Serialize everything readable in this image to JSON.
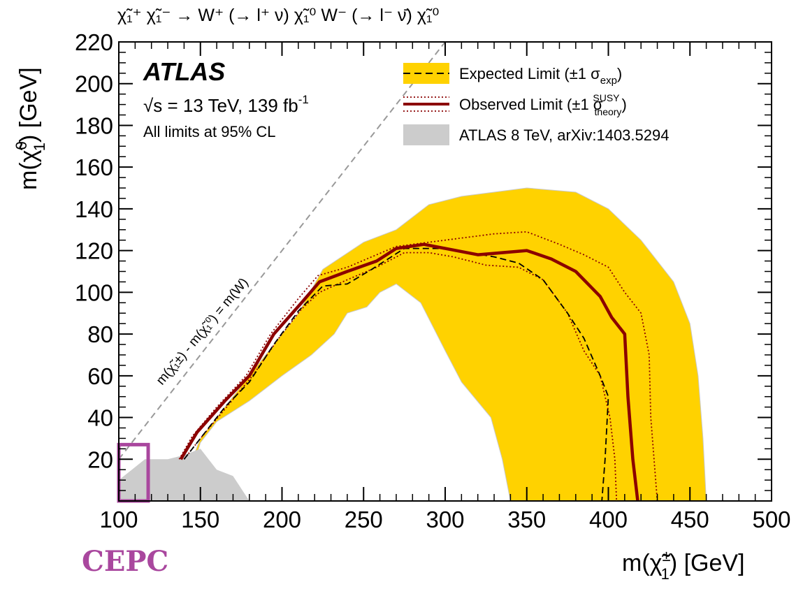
{
  "chart_data": {
    "type": "area",
    "title": "χ̃₁⁺ χ̃₁⁻ → W⁺ (→ l⁺ ν) χ̃₁⁰ W⁻ (→ l⁻ ν̄) χ̃₁⁰",
    "xlabel_main": "m(χ̃",
    "xlabel_sup": "±",
    "xlabel_sub": "1",
    "xlabel_tail": ") [GeV]",
    "ylabel_main": "m(χ̃",
    "ylabel_sup": "0",
    "ylabel_sub": "1",
    "ylabel_tail": ") [GeV]",
    "xlim": [
      100,
      500
    ],
    "ylim": [
      0,
      220
    ],
    "x_ticks": [
      "100",
      "150",
      "200",
      "250",
      "300",
      "350",
      "400",
      "450",
      "500"
    ],
    "y_ticks": [
      "20",
      "40",
      "60",
      "80",
      "100",
      "120",
      "140",
      "160",
      "180",
      "200",
      "220"
    ],
    "grid": false,
    "experiment": "ATLAS",
    "energy_text": "√s = 13 TeV, 139 fb",
    "energy_sup": "-1",
    "cl_text": "All limits at 95% CL",
    "diagonal_label": "m(χ̃₁±) - m(χ̃₁⁰) = m(W)",
    "legend_position": "top-right",
    "legend": [
      {
        "label": "Expected Limit (±1 σ",
        "sub": "exp",
        "tail": ")"
      },
      {
        "label": "Observed Limit (±1 σ",
        "sub": "theory",
        "sup": "SUSY",
        "tail": ")"
      },
      {
        "label": "ATLAS 8 TeV, arXiv:1403.5294"
      }
    ],
    "colors": {
      "band": "#ffd200",
      "band_edge": "#c9c9c9",
      "observed": "#8b0000",
      "expected": "#000000",
      "excl_8tev": "#cccccc",
      "diagonal": "#999999",
      "highlight_box": "#a9479e"
    },
    "series": {
      "band_outer": [
        [
          140,
          0
        ],
        [
          145,
          20
        ],
        [
          150,
          30
        ],
        [
          170,
          50
        ],
        [
          190,
          70
        ],
        [
          210,
          90
        ],
        [
          225,
          111
        ],
        [
          250,
          124
        ],
        [
          270,
          130
        ],
        [
          290,
          142
        ],
        [
          310,
          146
        ],
        [
          350,
          150
        ],
        [
          380,
          148
        ],
        [
          400,
          140
        ],
        [
          420,
          125
        ],
        [
          440,
          105
        ],
        [
          450,
          85
        ],
        [
          455,
          60
        ],
        [
          458,
          30
        ],
        [
          460,
          0
        ]
      ],
      "band_inner": [
        [
          340,
          0
        ],
        [
          335,
          20
        ],
        [
          328,
          40
        ],
        [
          310,
          57
        ],
        [
          300,
          72
        ],
        [
          285,
          95
        ],
        [
          270,
          104
        ],
        [
          260,
          100
        ],
        [
          252,
          93
        ],
        [
          240,
          90
        ],
        [
          232,
          80
        ],
        [
          218,
          70
        ],
        [
          200,
          60
        ],
        [
          180,
          48
        ],
        [
          160,
          38
        ],
        [
          150,
          28
        ],
        [
          147,
          20
        ],
        [
          143,
          10
        ],
        [
          142,
          0
        ]
      ],
      "excl_8tev": [
        [
          100,
          0
        ],
        [
          100,
          10
        ],
        [
          108,
          15
        ],
        [
          116,
          20
        ],
        [
          130,
          20
        ],
        [
          140,
          22
        ],
        [
          150,
          25
        ],
        [
          155,
          20
        ],
        [
          160,
          15
        ],
        [
          170,
          12
        ],
        [
          180,
          0
        ]
      ],
      "observed": [
        [
          138,
          20
        ],
        [
          148,
          33
        ],
        [
          165,
          48
        ],
        [
          180,
          60
        ],
        [
          195,
          80
        ],
        [
          212,
          95
        ],
        [
          223,
          105
        ],
        [
          240,
          110
        ],
        [
          258,
          115
        ],
        [
          270,
          121
        ],
        [
          287,
          123
        ],
        [
          300,
          121
        ],
        [
          320,
          118
        ],
        [
          335,
          119
        ],
        [
          350,
          120
        ],
        [
          365,
          116
        ],
        [
          380,
          110
        ],
        [
          395,
          98
        ],
        [
          402,
          88
        ],
        [
          410,
          80
        ],
        [
          412,
          50
        ],
        [
          415,
          20
        ],
        [
          418,
          0
        ]
      ],
      "expected": [
        [
          140,
          20
        ],
        [
          150,
          30
        ],
        [
          165,
          45
        ],
        [
          180,
          57
        ],
        [
          195,
          75
        ],
        [
          210,
          91
        ],
        [
          225,
          103
        ],
        [
          240,
          104
        ],
        [
          255,
          111
        ],
        [
          265,
          116
        ],
        [
          275,
          121
        ],
        [
          300,
          121
        ],
        [
          330,
          117
        ],
        [
          345,
          114
        ],
        [
          360,
          106
        ],
        [
          375,
          90
        ],
        [
          385,
          78
        ],
        [
          395,
          60
        ],
        [
          400,
          50
        ],
        [
          398,
          20
        ],
        [
          396,
          0
        ]
      ],
      "observed_up": [
        [
          137,
          20
        ],
        [
          145,
          31
        ],
        [
          160,
          45
        ],
        [
          178,
          60
        ],
        [
          193,
          80
        ],
        [
          210,
          97
        ],
        [
          222,
          108
        ],
        [
          240,
          112
        ],
        [
          255,
          117
        ],
        [
          270,
          122
        ],
        [
          290,
          124
        ],
        [
          310,
          126
        ],
        [
          330,
          128
        ],
        [
          350,
          129
        ],
        [
          370,
          123
        ],
        [
          385,
          118
        ],
        [
          400,
          112
        ],
        [
          410,
          100
        ],
        [
          420,
          90
        ],
        [
          425,
          70
        ],
        [
          426,
          40
        ],
        [
          430,
          0
        ]
      ],
      "observed_dn": [
        [
          140,
          20
        ],
        [
          150,
          30
        ],
        [
          165,
          44
        ],
        [
          182,
          60
        ],
        [
          198,
          78
        ],
        [
          212,
          92
        ],
        [
          223,
          100
        ],
        [
          240,
          106
        ],
        [
          258,
          112
        ],
        [
          275,
          119
        ],
        [
          290,
          119
        ],
        [
          305,
          117
        ],
        [
          325,
          113
        ],
        [
          345,
          112
        ],
        [
          360,
          106
        ],
        [
          375,
          90
        ],
        [
          385,
          72
        ],
        [
          395,
          60
        ],
        [
          401,
          40
        ],
        [
          404,
          20
        ],
        [
          405,
          0
        ]
      ]
    },
    "diagonal": [
      [
        100,
        20
      ],
      [
        300,
        220
      ]
    ]
  },
  "branding": {
    "cepc": "CEPC"
  }
}
